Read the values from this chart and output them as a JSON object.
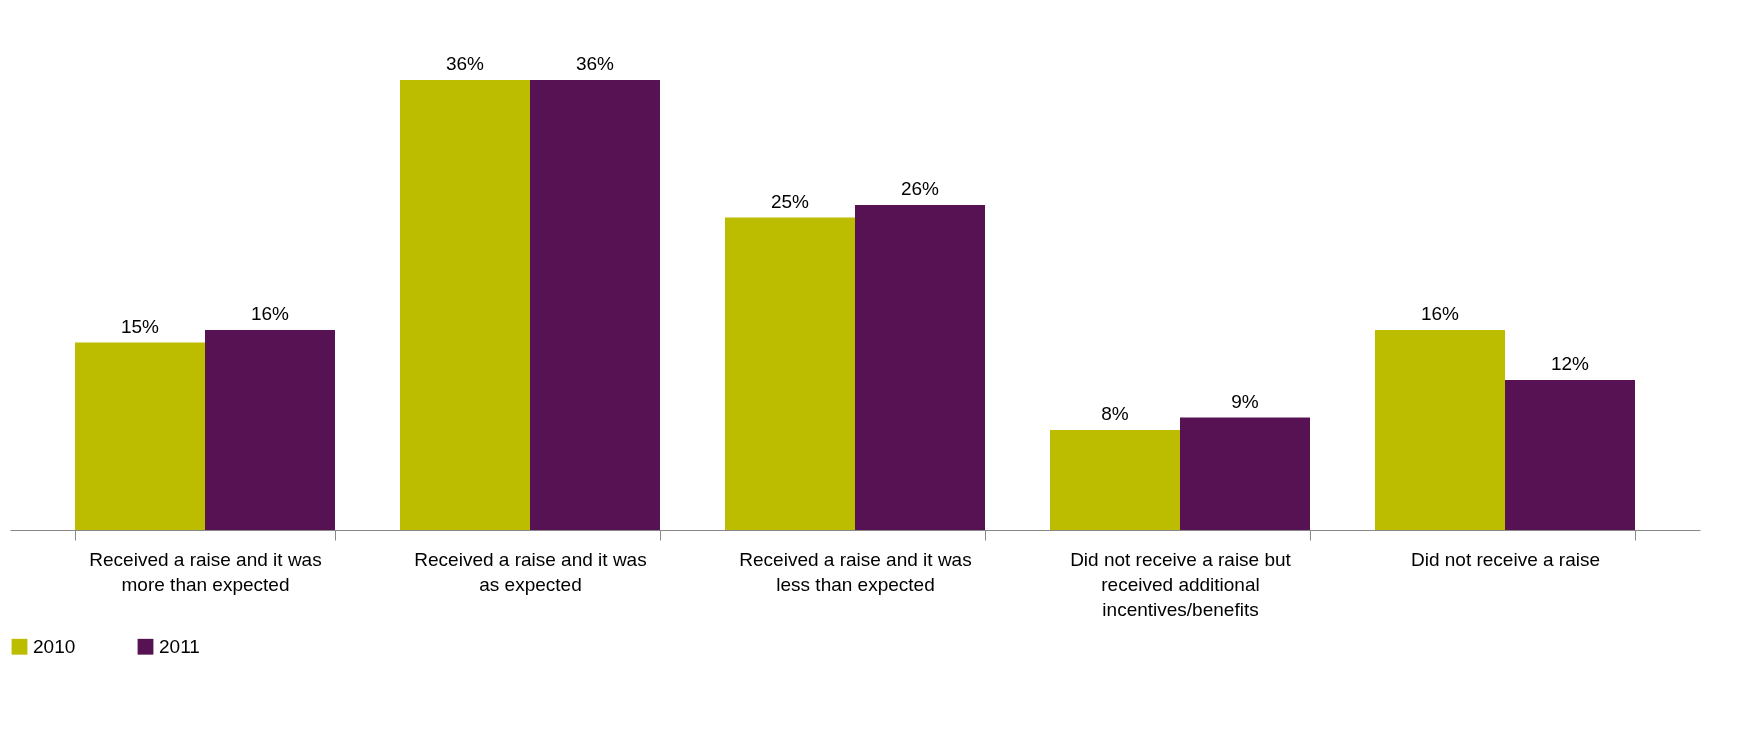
{
  "chart_data": {
    "type": "bar",
    "categories": [
      "Received a raise and it was more than expected",
      "Received a raise and it was as expected",
      "Received a raise and it was less than expected",
      "Did not receive a raise but received additional incentives/benefits",
      "Did not receive a raise"
    ],
    "series": [
      {
        "name": "2010",
        "color": "#bcbc00",
        "values": [
          15,
          36,
          25,
          8,
          16
        ],
        "value_labels": [
          "15%",
          "36%",
          "25%",
          "8%",
          "16%"
        ]
      },
      {
        "name": "2011",
        "color": "#561252",
        "values": [
          16,
          36,
          26,
          9,
          12
        ],
        "value_labels": [
          "16%",
          "36%",
          "26%",
          "9%",
          "12%"
        ]
      }
    ],
    "legend": "bottom"
  }
}
